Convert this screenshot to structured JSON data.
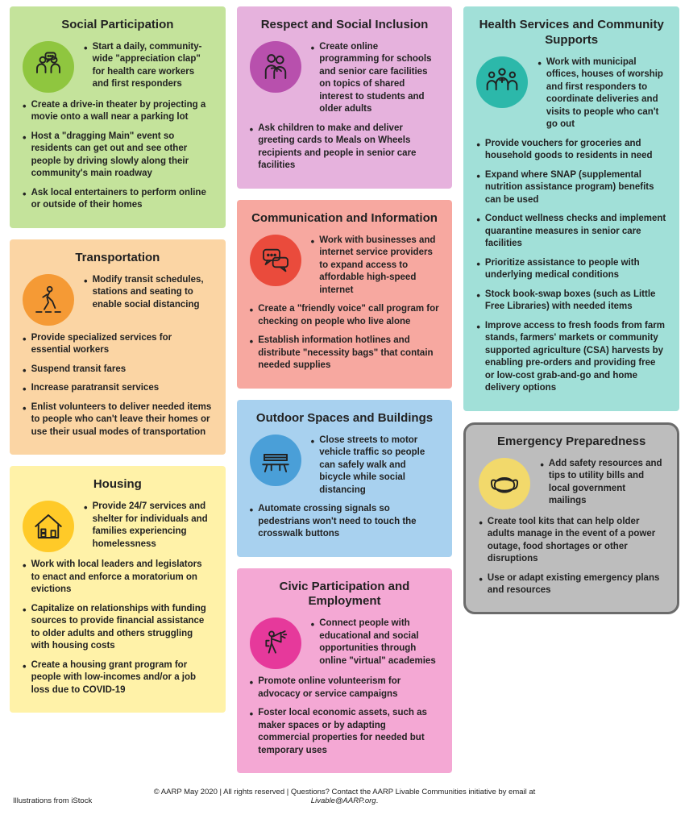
{
  "cards": [
    {
      "key": "social",
      "title": "Social Participation",
      "bg": "#c4e39b",
      "icon_bg": "#8fc63f",
      "icon": "talk",
      "hero": "Start a daily, community-wide \"appreciation clap\" for health care workers and first responders",
      "items": [
        "Create a drive-in theater by projecting a movie onto a wall near a parking lot",
        "Host a \"dragging Main\" event so residents can get out and see other people by driving slowly along their community's main roadway",
        "Ask local entertainers to perform online or outside of their homes"
      ]
    },
    {
      "key": "transport",
      "title": "Transportation",
      "bg": "#fbd5a4",
      "icon_bg": "#f59a35",
      "icon": "walk",
      "hero": "Modify transit schedules, stations and seating to enable social distancing",
      "items": [
        "Provide specialized services for essential workers",
        "Suspend transit fares",
        "Increase paratransit services",
        "Enlist volunteers to deliver needed items to people who can't leave their homes or use their usual modes of transportation"
      ]
    },
    {
      "key": "housing",
      "title": "Housing",
      "bg": "#fff2a8",
      "icon_bg": "#ffca28",
      "icon": "house",
      "hero": "Provide 24/7 services and shelter for individuals and families experiencing homelessness",
      "items": [
        "Work with local leaders and legislators to enact and enforce a moratorium on evictions",
        "Capitalize on relationships with funding sources to provide financial assistance to older adults and others struggling with housing costs",
        "Create a housing grant program for people with low-incomes and/or a job loss due to COVID-19"
      ]
    },
    {
      "key": "respect",
      "title": "Respect and Social Inclusion",
      "bg": "#e6b2dd",
      "icon_bg": "#b850ad",
      "icon": "hug",
      "hero": "Create online programming for schools and senior care facilities on topics of shared interest to students and older adults",
      "items": [
        "Ask children to make and deliver greeting cards to Meals on Wheels recipients and people in senior care facilities"
      ]
    },
    {
      "key": "comm",
      "title": "Communication and Information",
      "bg": "#f7a8a0",
      "icon_bg": "#ea4b3c",
      "icon": "chat",
      "hero": "Work with businesses and internet service providers to expand access to affordable high-speed internet",
      "items": [
        "Create a \"friendly voice\" call program for checking on people who live alone",
        "Establish information hotlines and distribute \"necessity bags\" that contain needed supplies"
      ]
    },
    {
      "key": "outdoor",
      "title": "Outdoor Spaces and Buildings",
      "bg": "#a8d1ef",
      "icon_bg": "#4a9fd8",
      "icon": "bench",
      "hero": "Close streets to motor vehicle traffic so people can safely walk and bicycle while social distancing",
      "items": [
        "Automate crossing signals so pedestrians won't need to touch the crosswalk buttons"
      ]
    },
    {
      "key": "civic",
      "title": "Civic Participation and Employment",
      "bg": "#f4a8d4",
      "icon_bg": "#e6399b",
      "icon": "megaphone",
      "hero": "Connect people with educational and social opportunities through online \"virtual\" academies",
      "items": [
        "Promote online volunteerism for advocacy or service campaigns",
        "Foster local economic assets, such as maker spaces or by adapting commercial properties for needed but temporary uses"
      ]
    },
    {
      "key": "health",
      "title": "Health Services and Community Supports",
      "bg": "#a1e0d8",
      "icon_bg": "#2cb8aa",
      "icon": "doctors",
      "hero": "Work with municipal offices, houses of worship and first responders to coordinate deliveries and visits to people who can't go out",
      "items": [
        "Provide vouchers for groceries and household goods to residents in need",
        "Expand where SNAP (supplemental nutrition assistance program) benefits can be used",
        "Conduct wellness checks and implement quarantine measures in senior care facilities",
        "Prioritize assistance to people with underlying medical conditions",
        "Stock book-swap boxes (such as Little Free Libraries) with needed items",
        "Improve access to fresh foods from farm stands, farmers' markets or community supported agriculture (CSA) harvests by enabling pre-orders and providing free or low-cost grab-and-go and home delivery options"
      ]
    },
    {
      "key": "emergency",
      "title": "Emergency Preparedness",
      "bg": "#bdbdbd",
      "icon_bg": "#f2d96b",
      "icon": "mask",
      "special": true,
      "hero": "Add safety resources and tips to utility bills and local government mailings",
      "items": [
        "Create tool kits that can help older adults manage in the event of a power outage, food shortages or other disruptions",
        "Use or adapt existing emergency plans and resources"
      ]
    }
  ],
  "layout": {
    "col1": [
      "social",
      "transport",
      "housing"
    ],
    "col2": [
      "respect",
      "comm",
      "outdoor",
      "civic"
    ],
    "col3": [
      "health",
      "emergency"
    ]
  },
  "footer": {
    "left": "Illustrations from iStock",
    "center_prefix": "© AARP May 2020 | All rights reserved | Questions? Contact the AARP Livable Communities initiative by email at ",
    "center_em": "Livable@AARP.org",
    "center_suffix": "."
  },
  "icon_stroke": "#222222"
}
